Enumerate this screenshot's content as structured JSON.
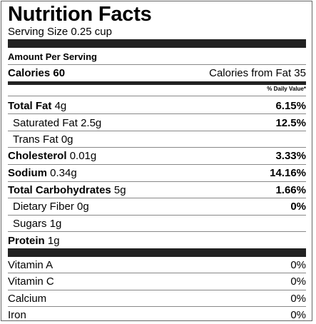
{
  "title": "Nutrition Facts",
  "serving": "Serving Size 0.25 cup",
  "amount_per_serving": "Amount Per Serving",
  "calories": {
    "label": "Calories",
    "value": "60",
    "from_fat": "Calories from Fat 35"
  },
  "daily_value_header": "% Daily Value*",
  "nutrients": {
    "total_fat": {
      "label": "Total Fat",
      "amount": "4g",
      "dv": "6.15%"
    },
    "saturated_fat": {
      "label": "Saturated Fat",
      "amount": "2.5g",
      "dv": "12.5%"
    },
    "trans_fat": {
      "label": "Trans Fat",
      "amount": "0g"
    },
    "cholesterol": {
      "label": "Cholesterol",
      "amount": "0.01g",
      "dv": "3.33%"
    },
    "sodium": {
      "label": "Sodium",
      "amount": "0.34g",
      "dv": "14.16%"
    },
    "total_carbs": {
      "label": "Total Carbohydrates",
      "amount": "5g",
      "dv": "1.66%"
    },
    "dietary_fiber": {
      "label": "Dietary Fiber",
      "amount": "0g",
      "dv": "0%"
    },
    "sugars": {
      "label": "Sugars",
      "amount": "1g"
    },
    "protein": {
      "label": "Protein",
      "amount": "1g"
    }
  },
  "vitamins": [
    {
      "label": "Vitamin A",
      "dv": "0%"
    },
    {
      "label": "Vitamin C",
      "dv": "0%"
    },
    {
      "label": "Calcium",
      "dv": "0%"
    },
    {
      "label": "Iron",
      "dv": "0%"
    }
  ]
}
